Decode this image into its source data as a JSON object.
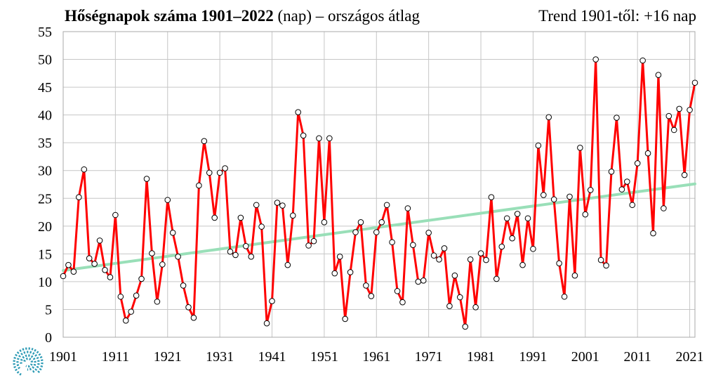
{
  "header": {
    "title_bold": "Hőségnapok száma 1901–2022",
    "title_rest": "(nap) – országos átlag",
    "trend_text": "Trend 1901-től: +16 nap"
  },
  "colors": {
    "series": "#ff0000",
    "trend": "#99dfb8",
    "grid": "#c6c6c6",
    "logo": "#2e9bb5"
  },
  "logo": {
    "icon": "swirl-logo-icon"
  },
  "chart_data": {
    "type": "line",
    "title": "Hőségnapok száma 1901–2022",
    "ylabel": "",
    "xlabel": "",
    "ylim": [
      0,
      55
    ],
    "xlim": [
      1901,
      2022
    ],
    "yticks": [
      0,
      5,
      10,
      15,
      20,
      25,
      30,
      35,
      40,
      45,
      50,
      55
    ],
    "xticks": [
      1901,
      1911,
      1921,
      1931,
      1941,
      1951,
      1961,
      1971,
      1981,
      1991,
      2001,
      2011,
      2021
    ],
    "grid": true,
    "legend": "none",
    "x_start": 1901,
    "series": [
      {
        "values": [
          11.0,
          13.0,
          11.8,
          25.2,
          30.2,
          14.2,
          13.2,
          17.4,
          12.1,
          10.8,
          22.0,
          7.3,
          3.0,
          4.6,
          7.5,
          10.5,
          28.5,
          15.1,
          6.4,
          13.1,
          24.7,
          18.8,
          14.5,
          9.3,
          5.4,
          3.5,
          27.3,
          35.3,
          29.6,
          21.5,
          29.6,
          30.4,
          15.4,
          14.8,
          21.5,
          16.4,
          14.5,
          23.8,
          19.9,
          2.5,
          6.5,
          24.2,
          23.7,
          13.0,
          21.9,
          40.5,
          36.3,
          16.5,
          17.3,
          35.8,
          20.7,
          35.8,
          11.5,
          14.5,
          3.3,
          11.7,
          18.9,
          20.7,
          9.3,
          7.4,
          18.9,
          20.7,
          23.8,
          17.1,
          8.3,
          6.3,
          23.2,
          16.6,
          10.0,
          10.2,
          18.8,
          14.7,
          14.0,
          16.0,
          5.6,
          11.1,
          7.2,
          1.9,
          14.0,
          5.4,
          15.1,
          13.9,
          25.2,
          10.5,
          16.3,
          21.4,
          17.8,
          22.2,
          13.0,
          21.4,
          15.9,
          34.5,
          25.6,
          39.6,
          24.8,
          13.3,
          7.3,
          25.3,
          11.1,
          34.1,
          22.1,
          26.5,
          50.0,
          13.9,
          12.9,
          29.8,
          39.5,
          26.6,
          28.0,
          23.8,
          31.3,
          49.8,
          33.1,
          18.7,
          47.2,
          23.2,
          39.8,
          37.3,
          41.1,
          29.2,
          40.9,
          45.8
        ]
      }
    ],
    "trend": {
      "start": 12.0,
      "end": 27.6
    }
  }
}
